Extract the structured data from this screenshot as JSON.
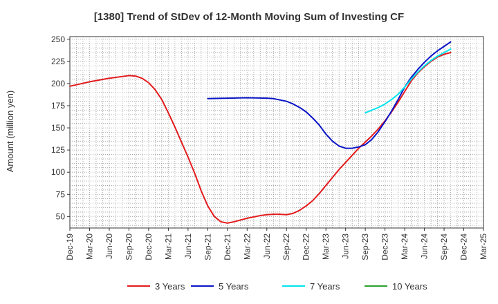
{
  "chart_data": {
    "type": "line",
    "title": "[1380]  Trend of StDev of 12-Month Moving Sum of Investing CF",
    "ylabel": "Amount (million yen)",
    "xlabel": "",
    "ylim": [
      37,
      253
    ],
    "yticks": [
      50,
      75,
      100,
      125,
      150,
      175,
      200,
      225,
      250
    ],
    "categories": [
      "Dec-19",
      "Mar-20",
      "Jun-20",
      "Sep-20",
      "Dec-20",
      "Mar-21",
      "Jun-21",
      "Sep-21",
      "Dec-21",
      "Mar-22",
      "Jun-22",
      "Sep-22",
      "Dec-22",
      "Mar-23",
      "Jun-23",
      "Sep-23",
      "Dec-23",
      "Mar-24",
      "Jun-24",
      "Sep-24",
      "Dec-24",
      "Mar-25"
    ],
    "grid": true,
    "legend_position": "bottom",
    "series": [
      {
        "name": "3 Years",
        "color": "#e31a1c",
        "points": [
          [
            "Dec-19",
            197
          ],
          [
            "Mar-20",
            202
          ],
          [
            "Jun-20",
            206
          ],
          [
            "Sep-20",
            209
          ],
          [
            "Oct-20",
            208.5
          ],
          [
            "Nov-20",
            206
          ],
          [
            "Dec-20",
            201
          ],
          [
            "Jan-21",
            193
          ],
          [
            "Feb-21",
            182
          ],
          [
            "Mar-21",
            167
          ],
          [
            "Apr-21",
            151
          ],
          [
            "May-21",
            134
          ],
          [
            "Jun-21",
            117
          ],
          [
            "Jul-21",
            99
          ],
          [
            "Aug-21",
            79
          ],
          [
            "Sep-21",
            62
          ],
          [
            "Oct-21",
            50
          ],
          [
            "Nov-21",
            44
          ],
          [
            "Dec-21",
            42.5
          ],
          [
            "Jan-22",
            44
          ],
          [
            "Feb-22",
            46
          ],
          [
            "Mar-22",
            48
          ],
          [
            "Apr-22",
            49.5
          ],
          [
            "May-22",
            51
          ],
          [
            "Jun-22",
            52
          ],
          [
            "Jul-22",
            52.5
          ],
          [
            "Aug-22",
            52.5
          ],
          [
            "Sep-22",
            52
          ],
          [
            "Oct-22",
            53.5
          ],
          [
            "Nov-22",
            57
          ],
          [
            "Dec-22",
            62
          ],
          [
            "Jan-23",
            68
          ],
          [
            "Feb-23",
            76
          ],
          [
            "Mar-23",
            85
          ],
          [
            "Apr-23",
            94
          ],
          [
            "May-23",
            103
          ],
          [
            "Jun-23",
            111
          ],
          [
            "Jul-23",
            119
          ],
          [
            "Aug-23",
            127
          ],
          [
            "Sep-23",
            134
          ],
          [
            "Oct-23",
            141
          ],
          [
            "Nov-23",
            149
          ],
          [
            "Dec-23",
            158
          ],
          [
            "Jan-24",
            168
          ],
          [
            "Feb-24",
            179
          ],
          [
            "Mar-24",
            191
          ],
          [
            "Apr-24",
            203
          ],
          [
            "May-24",
            212
          ],
          [
            "Jun-24",
            219
          ],
          [
            "Jul-24",
            225
          ],
          [
            "Aug-24",
            230
          ],
          [
            "Sep-24",
            233
          ],
          [
            "Oct-24",
            235
          ]
        ]
      },
      {
        "name": "5 Years",
        "color": "#0a14c8",
        "points": [
          [
            "Sep-21",
            183
          ],
          [
            "Dec-21",
            183.5
          ],
          [
            "Mar-22",
            184
          ],
          [
            "Jun-22",
            183.5
          ],
          [
            "Jul-22",
            183
          ],
          [
            "Aug-22",
            181.5
          ],
          [
            "Sep-22",
            180
          ],
          [
            "Oct-22",
            177
          ],
          [
            "Nov-22",
            173
          ],
          [
            "Dec-22",
            168
          ],
          [
            "Jan-23",
            161
          ],
          [
            "Feb-23",
            153
          ],
          [
            "Mar-23",
            143
          ],
          [
            "Apr-23",
            135
          ],
          [
            "May-23",
            129.5
          ],
          [
            "Jun-23",
            127
          ],
          [
            "Jul-23",
            127
          ],
          [
            "Aug-23",
            128.5
          ],
          [
            "Sep-23",
            131
          ],
          [
            "Oct-23",
            137
          ],
          [
            "Nov-23",
            146
          ],
          [
            "Dec-23",
            157
          ],
          [
            "Jan-24",
            169
          ],
          [
            "Feb-24",
            182
          ],
          [
            "Mar-24",
            196
          ],
          [
            "Apr-24",
            207
          ],
          [
            "May-24",
            216
          ],
          [
            "Jun-24",
            224
          ],
          [
            "Jul-24",
            231
          ],
          [
            "Aug-24",
            237
          ],
          [
            "Sep-24",
            242
          ],
          [
            "Oct-24",
            247
          ]
        ]
      },
      {
        "name": "7 Years",
        "color": "#00e5ee",
        "points": [
          [
            "Sep-23",
            167
          ],
          [
            "Oct-23",
            170
          ],
          [
            "Nov-23",
            173
          ],
          [
            "Dec-23",
            177
          ],
          [
            "Jan-24",
            182
          ],
          [
            "Feb-24",
            188
          ],
          [
            "Mar-24",
            196
          ],
          [
            "Apr-24",
            205
          ],
          [
            "May-24",
            213
          ],
          [
            "Jun-24",
            220
          ],
          [
            "Jul-24",
            226
          ],
          [
            "Aug-24",
            231
          ],
          [
            "Sep-24",
            235
          ],
          [
            "Oct-24",
            239
          ]
        ]
      },
      {
        "name": "10 Years",
        "color": "#2ca02c",
        "points": []
      }
    ]
  }
}
